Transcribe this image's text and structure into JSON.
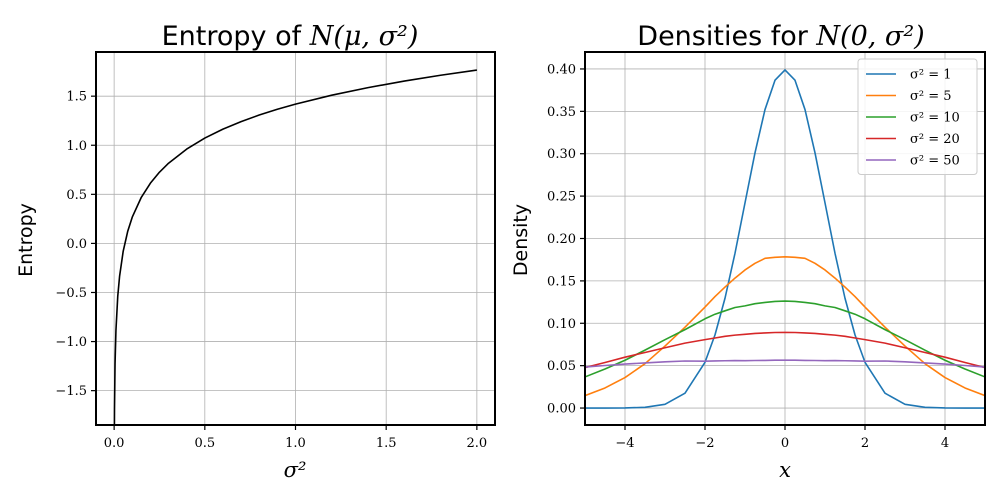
{
  "chart_data": [
    {
      "type": "line",
      "title_text": "Entropy of ",
      "title_math": "N(μ, σ²)",
      "xlabel": "σ²",
      "ylabel": "Entropy",
      "xlim": [
        -0.1,
        2.1
      ],
      "ylim": [
        -1.85,
        1.95
      ],
      "xticks": [
        0.0,
        0.5,
        1.0,
        1.5,
        2.0
      ],
      "xtick_labels": [
        "0.0",
        "0.5",
        "1.0",
        "1.5",
        "2.0"
      ],
      "yticks": [
        -1.5,
        -1.0,
        -0.5,
        0.0,
        0.5,
        1.0,
        1.5
      ],
      "ytick_labels": [
        "−1.5",
        "−1.0",
        "−0.5",
        "0.0",
        "0.5",
        "1.0",
        "1.5"
      ],
      "grid": true,
      "series": [
        {
          "color": "#000000",
          "x": [
            0.001,
            0.002,
            0.005,
            0.01,
            0.02,
            0.03,
            0.05,
            0.075,
            0.1,
            0.15,
            0.2,
            0.25,
            0.3,
            0.4,
            0.5,
            0.6,
            0.7,
            0.8,
            0.9,
            1.0,
            1.2,
            1.4,
            1.6,
            1.8,
            2.0
          ],
          "y": [
            -2.035,
            -1.688,
            -1.23,
            -0.884,
            -0.537,
            -0.335,
            -0.079,
            0.124,
            0.268,
            0.47,
            0.614,
            0.726,
            0.817,
            0.961,
            1.073,
            1.164,
            1.241,
            1.308,
            1.367,
            1.419,
            1.51,
            1.587,
            1.654,
            1.713,
            1.766
          ]
        }
      ]
    },
    {
      "type": "line",
      "title_text": "Densities for ",
      "title_math": "N(0, σ²)",
      "xlabel": "x",
      "ylabel": "Density",
      "xlim": [
        -5,
        5
      ],
      "ylim": [
        -0.02,
        0.42
      ],
      "xticks": [
        -4,
        -2,
        0,
        2,
        4
      ],
      "xtick_labels": [
        "−4",
        "−2",
        "0",
        "2",
        "4"
      ],
      "yticks": [
        0.0,
        0.05,
        0.1,
        0.15,
        0.2,
        0.25,
        0.3,
        0.35,
        0.4
      ],
      "ytick_labels": [
        "0.00",
        "0.05",
        "0.10",
        "0.15",
        "0.20",
        "0.25",
        "0.30",
        "0.35",
        "0.40"
      ],
      "grid": true,
      "legend_position": "upper-right",
      "x": [
        -5,
        -4.5,
        -4,
        -3.5,
        -3,
        -2.5,
        -2,
        -1.75,
        -1.5,
        -1.25,
        -1,
        -0.75,
        -0.5,
        -0.25,
        0,
        0.25,
        0.5,
        0.75,
        1,
        1.25,
        1.5,
        1.75,
        2,
        2.5,
        3,
        3.5,
        4,
        4.5,
        5
      ],
      "series": [
        {
          "name": "σ² = 1",
          "color": "#1f77b4",
          "values": [
            1.5e-06,
            1.6e-05,
            0.000134,
            0.00087,
            0.00443,
            0.0175,
            0.054,
            0.0863,
            0.1295,
            0.1826,
            0.242,
            0.3011,
            0.3521,
            0.3867,
            0.3989,
            0.3867,
            0.3521,
            0.3011,
            0.242,
            0.1826,
            0.1295,
            0.0863,
            0.054,
            0.0175,
            0.00443,
            0.00087,
            0.000134,
            1.6e-05,
            1.5e-06
          ]
        },
        {
          "name": "σ² = 5",
          "color": "#ff7f0e",
          "values": [
            0.0147,
            0.0237,
            0.036,
            0.0523,
            0.0731,
            0.0954,
            0.1191,
            0.1315,
            0.1427,
            0.1533,
            0.1629,
            0.1707,
            0.1766,
            0.1778,
            0.1784,
            0.1778,
            0.1766,
            0.1707,
            0.1629,
            0.1533,
            0.1427,
            0.1315,
            0.1191,
            0.0954,
            0.0731,
            0.0523,
            0.036,
            0.0237,
            0.0147
          ]
        },
        {
          "name": "σ² = 10",
          "color": "#2ca02c",
          "values": [
            0.0367,
            0.0461,
            0.0564,
            0.0683,
            0.0806,
            0.0925,
            0.1053,
            0.1107,
            0.1147,
            0.1186,
            0.1205,
            0.1231,
            0.1246,
            0.1258,
            0.1262,
            0.1258,
            0.1246,
            0.1231,
            0.1205,
            0.1186,
            0.1147,
            0.1107,
            0.1053,
            0.0925,
            0.0806,
            0.0683,
            0.0564,
            0.0461,
            0.0367
          ]
        },
        {
          "name": "σ² = 20",
          "color": "#d62728",
          "values": [
            0.0477,
            0.0537,
            0.06,
            0.0655,
            0.0711,
            0.0766,
            0.0807,
            0.0826,
            0.0846,
            0.086,
            0.087,
            0.088,
            0.0886,
            0.0891,
            0.0892,
            0.0891,
            0.0886,
            0.088,
            0.087,
            0.086,
            0.0846,
            0.0826,
            0.0807,
            0.0766,
            0.0711,
            0.0655,
            0.06,
            0.0537,
            0.0477
          ]
        },
        {
          "name": "σ² = 50",
          "color": "#9467bd",
          "values": [
            0.0484,
            0.0502,
            0.0519,
            0.0532,
            0.0545,
            0.0555,
            0.0553,
            0.0556,
            0.0558,
            0.056,
            0.0559,
            0.0561,
            0.0562,
            0.0564,
            0.0564,
            0.0564,
            0.0562,
            0.0561,
            0.0559,
            0.056,
            0.0558,
            0.0556,
            0.0553,
            0.0555,
            0.0545,
            0.0532,
            0.0519,
            0.0502,
            0.0484
          ]
        }
      ]
    }
  ]
}
